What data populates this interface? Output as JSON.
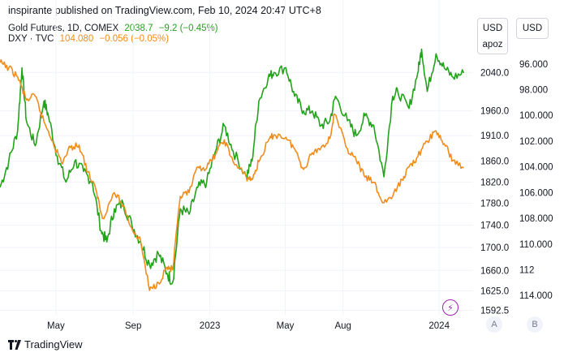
{
  "header": "inspirante published on TradingView.com, Feb 10, 2024 20:47 UTC+8",
  "legend": {
    "gold": {
      "name": "Gold Futures, 1D, COMEX",
      "price": "2038.7",
      "change": "−9.2 (−0.45%)"
    },
    "dxy": {
      "name": "DXY · TVC",
      "price": "104.080",
      "change": "−0.056 (−0.05%)"
    }
  },
  "scale_boxes": {
    "left_currency": "USD",
    "left_unit": "apoz",
    "right_currency": "USD"
  },
  "buttons": {
    "a": "A",
    "b": "B"
  },
  "footer": {
    "brand": "TradingView"
  },
  "colors": {
    "gold": "#22a31a",
    "dxy": "#f08c1c",
    "grid": "#f0f3fa",
    "text": "#131722"
  },
  "chart_data": {
    "type": "line",
    "title": "",
    "x_tick_labels": [
      "May",
      "Sep",
      "2023",
      "May",
      "Aug",
      "2024"
    ],
    "x_ticks_dates": [
      "2022-05-01",
      "2022-09-01",
      "2023-01-01",
      "2023-05-01",
      "2023-08-01",
      "2024-01-01"
    ],
    "left_axis": {
      "series": "Gold Futures",
      "unit": "USD apoz",
      "ticks": [
        1592.5,
        1625.0,
        1660.0,
        1700.0,
        1740.0,
        1780.0,
        1820.0,
        1860.0,
        1910.0,
        1960.0,
        2040.0
      ],
      "tick_labels": [
        "1592.5",
        "1625.0",
        "1660.0",
        "1700.0",
        "1740.0",
        "1780.0",
        "1820.0",
        "1860.0",
        "1910.0",
        "1960.0",
        "2040.0"
      ],
      "ylim": [
        1585,
        2100
      ],
      "scale": "log"
    },
    "right_axis": {
      "series": "DXY",
      "unit": "USD",
      "inverted": true,
      "ticks": [
        96.0,
        98.0,
        100.0,
        102.0,
        104.0,
        106.0,
        108.0,
        110.0,
        112.0,
        114.0
      ],
      "tick_labels": [
        "96.000",
        "98.000",
        "100.000",
        "102.000",
        "104.000",
        "106.000",
        "108.000",
        "110.000",
        112.0,
        "114.000"
      ],
      "ylim": [
        94.5,
        115.5
      ]
    },
    "series": [
      {
        "name": "Gold Futures, 1D, COMEX",
        "axis": "left",
        "x": [
          "2022-02-01",
          "2022-02-15",
          "2022-03-01",
          "2022-03-08",
          "2022-03-15",
          "2022-03-29",
          "2022-04-12",
          "2022-04-19",
          "2022-05-03",
          "2022-05-17",
          "2022-05-31",
          "2022-06-14",
          "2022-06-28",
          "2022-07-12",
          "2022-07-21",
          "2022-08-02",
          "2022-08-16",
          "2022-08-30",
          "2022-09-13",
          "2022-09-27",
          "2022-10-11",
          "2022-10-25",
          "2022-11-03",
          "2022-11-15",
          "2022-11-29",
          "2022-12-13",
          "2022-12-27",
          "2023-01-10",
          "2023-01-24",
          "2023-02-07",
          "2023-02-28",
          "2023-03-09",
          "2023-03-20",
          "2023-04-04",
          "2023-04-13",
          "2023-05-02",
          "2023-05-16",
          "2023-05-30",
          "2023-06-13",
          "2023-06-27",
          "2023-07-11",
          "2023-07-20",
          "2023-08-08",
          "2023-08-22",
          "2023-09-05",
          "2023-09-19",
          "2023-10-05",
          "2023-10-19",
          "2023-10-27",
          "2023-11-14",
          "2023-11-28",
          "2023-12-04",
          "2023-12-13",
          "2023-12-27",
          "2024-01-09",
          "2024-01-23",
          "2024-02-09"
        ],
        "values": [
          1810,
          1860,
          1920,
          2050,
          1940,
          1890,
          1980,
          1950,
          1870,
          1820,
          1860,
          1840,
          1820,
          1730,
          1710,
          1770,
          1780,
          1740,
          1710,
          1670,
          1690,
          1655,
          1640,
          1770,
          1760,
          1810,
          1820,
          1880,
          1930,
          1880,
          1830,
          1860,
          1980,
          2030,
          2040,
          2050,
          1990,
          1960,
          1960,
          1930,
          1940,
          1990,
          1940,
          1910,
          1950,
          1930,
          1830,
          1990,
          2000,
          1965,
          2040,
          2090,
          2000,
          2080,
          2050,
          2030,
          2038.7
        ]
      },
      {
        "name": "DXY · TVC",
        "axis": "right",
        "x": [
          "2022-02-01",
          "2022-02-15",
          "2022-03-01",
          "2022-03-15",
          "2022-03-29",
          "2022-04-12",
          "2022-04-26",
          "2022-05-10",
          "2022-05-24",
          "2022-06-07",
          "2022-06-21",
          "2022-07-05",
          "2022-07-14",
          "2022-08-02",
          "2022-08-16",
          "2022-08-30",
          "2022-09-13",
          "2022-09-27",
          "2022-10-11",
          "2022-10-25",
          "2022-11-03",
          "2022-11-15",
          "2022-11-29",
          "2022-12-13",
          "2022-12-27",
          "2023-01-10",
          "2023-01-24",
          "2023-02-07",
          "2023-02-28",
          "2023-03-09",
          "2023-03-20",
          "2023-04-04",
          "2023-04-13",
          "2023-05-02",
          "2023-05-16",
          "2023-05-30",
          "2023-06-13",
          "2023-06-27",
          "2023-07-11",
          "2023-07-18",
          "2023-08-08",
          "2023-08-22",
          "2023-09-05",
          "2023-09-19",
          "2023-10-03",
          "2023-10-19",
          "2023-11-03",
          "2023-11-14",
          "2023-11-28",
          "2023-12-13",
          "2023-12-27",
          "2024-01-09",
          "2024-01-23",
          "2024-02-09"
        ],
        "values": [
          95.9,
          96.3,
          97.0,
          98.8,
          98.5,
          100.5,
          102.0,
          103.7,
          102.5,
          102.3,
          104.4,
          106.0,
          108.0,
          106.0,
          107.0,
          108.8,
          109.8,
          113.6,
          113.0,
          111.8,
          112.0,
          106.3,
          106.0,
          104.0,
          104.1,
          103.0,
          101.9,
          103.6,
          104.8,
          105.0,
          103.6,
          102.0,
          101.5,
          101.7,
          102.6,
          104.2,
          102.9,
          102.5,
          101.8,
          99.9,
          102.6,
          103.5,
          104.8,
          105.2,
          106.8,
          106.3,
          105.0,
          104.0,
          103.2,
          102.0,
          101.2,
          102.2,
          103.5,
          104.08
        ]
      }
    ],
    "grid": true,
    "legend": "top-left"
  }
}
